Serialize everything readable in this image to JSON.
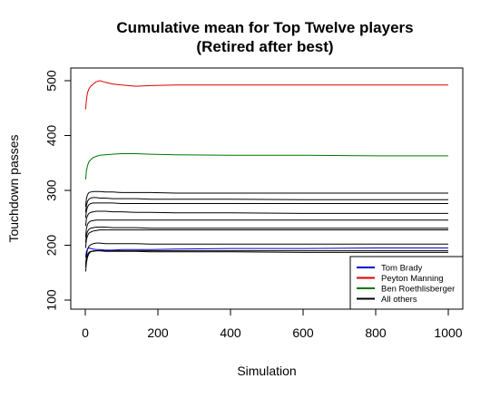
{
  "chart_data": {
    "type": "line",
    "title": "Cumulative mean for Top Twelve players",
    "subtitle": "(Retired after best)",
    "xlabel": "Simulation",
    "ylabel": "Touchdown passes",
    "xlim": [
      0,
      1000
    ],
    "ylim": [
      100,
      500
    ],
    "xticks": [
      0,
      200,
      400,
      600,
      800,
      1000
    ],
    "yticks": [
      100,
      200,
      300,
      400,
      500
    ],
    "grid": false,
    "legend_position": "bottom-right",
    "legend": [
      {
        "label": "Tom Brady",
        "color": "#0000cc"
      },
      {
        "label": "Peyton Manning",
        "color": "#dd0000"
      },
      {
        "label": "Ben Roethlisberger",
        "color": "#007700"
      },
      {
        "label": "All others",
        "color": "#000000"
      }
    ],
    "series": [
      {
        "group": "Peyton Manning",
        "color": "#dd0000",
        "x": [
          1,
          3,
          6,
          10,
          15,
          22,
          30,
          40,
          55,
          75,
          100,
          140,
          180,
          250,
          400,
          600,
          800,
          1000
        ],
        "y": [
          448,
          465,
          478,
          485,
          490,
          494,
          498,
          500,
          497,
          494,
          492,
          490,
          491,
          492,
          492,
          492,
          492,
          492
        ]
      },
      {
        "group": "Ben Roethlisberger",
        "color": "#007700",
        "x": [
          1,
          3,
          6,
          10,
          15,
          22,
          30,
          40,
          55,
          75,
          100,
          140,
          180,
          250,
          400,
          600,
          800,
          1000
        ],
        "y": [
          320,
          335,
          345,
          352,
          356,
          360,
          362,
          364,
          365,
          366,
          367,
          367,
          366,
          365,
          364,
          364,
          363,
          363
        ]
      },
      {
        "group": "Tom Brady",
        "color": "#0000cc",
        "x": [
          1,
          3,
          6,
          10,
          15,
          22,
          30,
          40,
          55,
          75,
          100,
          140,
          180,
          250,
          400,
          600,
          800,
          1000
        ],
        "y": [
          178,
          188,
          193,
          195,
          194,
          193,
          192,
          192,
          191,
          191,
          192,
          192,
          192,
          193,
          194,
          194,
          195,
          195
        ]
      },
      {
        "group": "All others",
        "color": "#000000",
        "x": [
          1,
          3,
          6,
          10,
          15,
          22,
          30,
          40,
          55,
          75,
          100,
          140,
          180,
          250,
          400,
          600,
          800,
          1000
        ],
        "y": [
          270,
          285,
          292,
          296,
          297,
          298,
          298,
          298,
          297,
          297,
          296,
          296,
          296,
          295,
          295,
          295,
          295,
          295
        ]
      },
      {
        "group": "All others",
        "color": "#000000",
        "x": [
          1,
          3,
          6,
          10,
          15,
          22,
          30,
          40,
          55,
          75,
          100,
          140,
          180,
          250,
          400,
          600,
          800,
          1000
        ],
        "y": [
          260,
          272,
          280,
          284,
          286,
          287,
          287,
          286,
          286,
          285,
          285,
          285,
          284,
          284,
          284,
          283,
          283,
          283
        ]
      },
      {
        "group": "All others",
        "color": "#000000",
        "x": [
          1,
          3,
          6,
          10,
          15,
          22,
          30,
          40,
          55,
          75,
          100,
          140,
          180,
          250,
          400,
          600,
          800,
          1000
        ],
        "y": [
          250,
          262,
          270,
          274,
          276,
          277,
          277,
          277,
          277,
          277,
          276,
          276,
          276,
          276,
          276,
          276,
          276,
          276
        ]
      },
      {
        "group": "All others",
        "color": "#000000",
        "x": [
          1,
          3,
          6,
          10,
          15,
          22,
          30,
          40,
          55,
          75,
          100,
          140,
          180,
          250,
          400,
          600,
          800,
          1000
        ],
        "y": [
          235,
          248,
          254,
          258,
          260,
          261,
          262,
          262,
          262,
          261,
          261,
          260,
          260,
          259,
          259,
          258,
          258,
          258
        ]
      },
      {
        "group": "All others",
        "color": "#000000",
        "x": [
          1,
          3,
          6,
          10,
          15,
          22,
          30,
          40,
          55,
          75,
          100,
          140,
          180,
          250,
          400,
          600,
          800,
          1000
        ],
        "y": [
          215,
          230,
          238,
          242,
          244,
          245,
          246,
          246,
          246,
          246,
          246,
          246,
          246,
          246,
          246,
          246,
          246,
          246
        ]
      },
      {
        "group": "All others",
        "color": "#000000",
        "x": [
          1,
          3,
          6,
          10,
          15,
          22,
          30,
          40,
          55,
          75,
          100,
          140,
          180,
          250,
          400,
          600,
          800,
          1000
        ],
        "y": [
          205,
          218,
          225,
          229,
          231,
          232,
          233,
          233,
          233,
          232,
          232,
          232,
          231,
          231,
          231,
          231,
          231,
          231
        ]
      },
      {
        "group": "All others",
        "color": "#000000",
        "x": [
          1,
          3,
          6,
          10,
          15,
          22,
          30,
          40,
          55,
          75,
          100,
          140,
          180,
          250,
          400,
          600,
          800,
          1000
        ],
        "y": [
          195,
          210,
          217,
          222,
          224,
          226,
          227,
          228,
          228,
          228,
          228,
          228,
          228,
          228,
          228,
          228,
          228,
          228
        ]
      },
      {
        "group": "All others",
        "color": "#000000",
        "x": [
          1,
          3,
          6,
          10,
          15,
          22,
          30,
          40,
          55,
          75,
          100,
          140,
          180,
          250,
          400,
          600,
          800,
          1000
        ],
        "y": [
          160,
          180,
          193,
          198,
          201,
          203,
          204,
          204,
          203,
          203,
          203,
          203,
          202,
          202,
          202,
          202,
          202,
          202
        ]
      },
      {
        "group": "All others",
        "color": "#000000",
        "x": [
          1,
          3,
          6,
          10,
          15,
          22,
          30,
          40,
          55,
          75,
          100,
          140,
          180,
          250,
          400,
          600,
          800,
          1000
        ],
        "y": [
          152,
          168,
          178,
          185,
          188,
          190,
          190,
          190,
          190,
          190,
          190,
          190,
          190,
          190,
          190,
          190,
          190,
          190
        ]
      },
      {
        "group": "All others",
        "color": "#000000",
        "x": [
          1,
          3,
          6,
          10,
          15,
          22,
          30,
          40,
          55,
          75,
          100,
          140,
          180,
          250,
          400,
          600,
          800,
          1000
        ],
        "y": [
          165,
          176,
          183,
          187,
          189,
          189,
          190,
          190,
          189,
          189,
          189,
          189,
          188,
          188,
          188,
          187,
          187,
          187
        ]
      }
    ]
  }
}
